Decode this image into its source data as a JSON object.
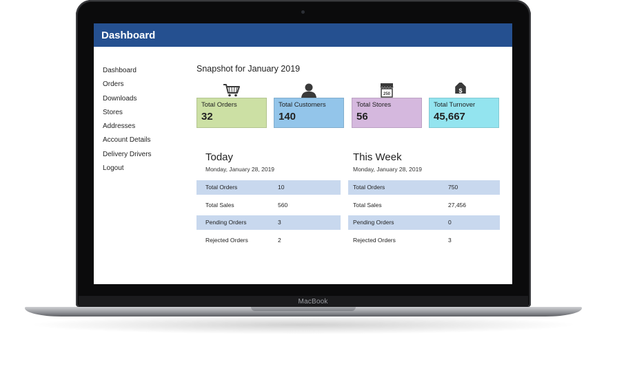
{
  "device": {
    "brand": "MacBook"
  },
  "header": {
    "title": "Dashboard"
  },
  "sidebar": {
    "items": [
      {
        "label": "Dashboard"
      },
      {
        "label": "Orders"
      },
      {
        "label": "Downloads"
      },
      {
        "label": "Stores"
      },
      {
        "label": "Addresses"
      },
      {
        "label": "Account Details"
      },
      {
        "label": "Delivery Drivers"
      },
      {
        "label": "Logout"
      }
    ]
  },
  "snapshot": {
    "title": "Snapshot for January 2019",
    "cards": [
      {
        "icon": "shopping-cart-icon",
        "label": "Total Orders",
        "value": "32",
        "color": "#cce0a4"
      },
      {
        "icon": "person-icon",
        "label": "Total Customers",
        "value": "140",
        "color": "#93c5ea"
      },
      {
        "icon": "storefront-icon",
        "label": "Total Stores",
        "value": "56",
        "color": "#d5b8de"
      },
      {
        "icon": "price-tag-icon",
        "label": "Total Turnover",
        "value": "45,667",
        "color": "#93e4ef"
      }
    ],
    "store_icon_text": "250"
  },
  "today": {
    "title": "Today",
    "date": "Monday, January 28, 2019",
    "rows": [
      {
        "label": "Total Orders",
        "value": "10"
      },
      {
        "label": "Total Sales",
        "value": "560"
      },
      {
        "label": "Pending Orders",
        "value": "3"
      },
      {
        "label": "Rejected Orders",
        "value": "2"
      }
    ]
  },
  "week": {
    "title": "This Week",
    "date": "Monday, January 28, 2019",
    "rows": [
      {
        "label": "Total Orders",
        "value": "750"
      },
      {
        "label": "Total Sales",
        "value": "27,456"
      },
      {
        "label": "Pending Orders",
        "value": "0"
      },
      {
        "label": "Rejected Orders",
        "value": "3"
      }
    ]
  },
  "colors": {
    "header": "#255090",
    "row_shade": "#c8d8ee"
  }
}
